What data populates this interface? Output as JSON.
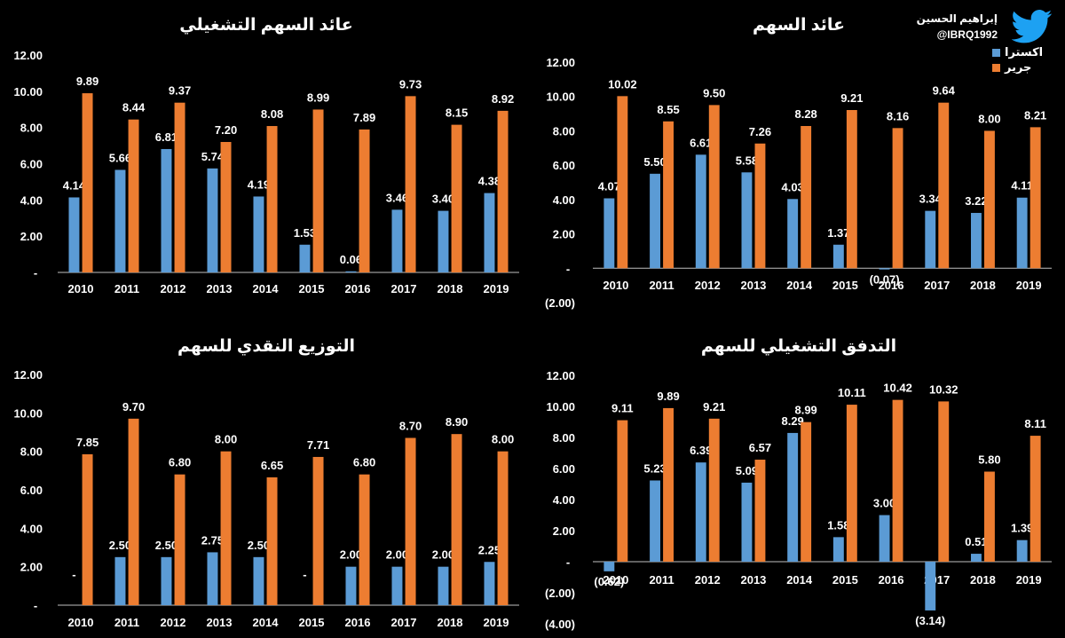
{
  "colors": {
    "background": "#000000",
    "extra": "#5B9BD5",
    "jarir": "#ED7D31",
    "text": "#FFFFFF",
    "axis": "#BFBFBF"
  },
  "brand": {
    "name": "إبراهيم الحسين",
    "handle": "@IBRQ1992",
    "icon": "twitter-bird-icon"
  },
  "legend": {
    "extra": "اكسترا",
    "jarir": "جرير"
  },
  "chart_data": [
    {
      "id": "operating-eps",
      "type": "bar",
      "title": "عائد السهم التشغيلي",
      "categories": [
        "2010",
        "2011",
        "2012",
        "2013",
        "2014",
        "2015",
        "2016",
        "2017",
        "2018",
        "2019"
      ],
      "series": [
        {
          "name": "اكسترا",
          "values": [
            4.14,
            5.66,
            6.81,
            5.74,
            4.19,
            1.53,
            0.06,
            3.46,
            3.4,
            4.38
          ],
          "labels": [
            "4.14",
            "5.66",
            "6.81",
            "5.74",
            "4.19",
            "1.53",
            "0.06",
            "3.46",
            "3.40",
            "4.38"
          ]
        },
        {
          "name": "جرير",
          "values": [
            9.89,
            8.44,
            9.37,
            7.2,
            8.08,
            8.99,
            7.89,
            9.73,
            8.15,
            8.92
          ],
          "labels": [
            "9.89",
            "8.44",
            "9.37",
            "7.20",
            "8.08",
            "8.99",
            "7.89",
            "9.73",
            "8.15",
            "8.92"
          ]
        }
      ],
      "yticks": [
        "-",
        "2.00",
        "4.00",
        "6.00",
        "8.00",
        "10.00",
        "12.00"
      ],
      "ytick_values": [
        0,
        2,
        4,
        6,
        8,
        10,
        12
      ],
      "ylim": [
        0,
        12
      ]
    },
    {
      "id": "eps",
      "type": "bar",
      "title": "عائد السهم",
      "categories": [
        "2010",
        "2011",
        "2012",
        "2013",
        "2014",
        "2015",
        "2016",
        "2017",
        "2018",
        "2019"
      ],
      "series": [
        {
          "name": "اكسترا",
          "values": [
            4.07,
            5.5,
            6.61,
            5.58,
            4.03,
            1.37,
            -0.07,
            3.34,
            3.22,
            4.11
          ],
          "labels": [
            "4.07",
            "5.50",
            "6.61",
            "5.58",
            "4.03",
            "1.37",
            "(0.07)",
            "3.34",
            "3.22",
            "4.11"
          ]
        },
        {
          "name": "جرير",
          "values": [
            10.02,
            8.55,
            9.5,
            7.26,
            8.28,
            9.21,
            8.16,
            9.64,
            8.0,
            8.21
          ],
          "labels": [
            "10.02",
            "8.55",
            "9.50",
            "7.26",
            "8.28",
            "9.21",
            "8.16",
            "9.64",
            "8.00",
            "8.21"
          ]
        }
      ],
      "yticks": [
        "(2.00)",
        "-",
        "2.00",
        "4.00",
        "6.00",
        "8.00",
        "10.00",
        "12.00"
      ],
      "ytick_values": [
        -2,
        0,
        2,
        4,
        6,
        8,
        10,
        12
      ],
      "ylim": [
        -2,
        12
      ],
      "legend": [
        "اكسترا",
        "جرير"
      ]
    },
    {
      "id": "dividends",
      "type": "bar",
      "title": "التوزيع النقدي للسهم",
      "categories": [
        "2010",
        "2011",
        "2012",
        "2013",
        "2014",
        "2015",
        "2016",
        "2017",
        "2018",
        "2019"
      ],
      "series": [
        {
          "name": "اكسترا",
          "values": [
            0,
            2.5,
            2.5,
            2.75,
            2.5,
            0,
            2.0,
            2.0,
            2.0,
            2.25
          ],
          "labels": [
            "-",
            "2.50",
            "2.50",
            "2.75",
            "2.50",
            "-",
            "2.00",
            "2.00",
            "2.00",
            "2.25"
          ]
        },
        {
          "name": "جرير",
          "values": [
            7.85,
            9.7,
            6.8,
            8.0,
            6.65,
            7.71,
            6.8,
            8.7,
            8.9,
            8.0
          ],
          "labels": [
            "7.85",
            "9.70",
            "6.80",
            "8.00",
            "6.65",
            "7.71",
            "6.80",
            "8.70",
            "8.90",
            "8.00"
          ]
        }
      ],
      "yticks": [
        "-",
        "2.00",
        "4.00",
        "6.00",
        "8.00",
        "10.00",
        "12.00"
      ],
      "ytick_values": [
        0,
        2,
        4,
        6,
        8,
        10,
        12
      ],
      "ylim": [
        0,
        12
      ]
    },
    {
      "id": "operating-cashflow",
      "type": "bar",
      "title": "التدفق التشغيلي للسهم",
      "categories": [
        "2010",
        "2011",
        "2012",
        "2013",
        "2014",
        "2015",
        "2016",
        "2017",
        "2018",
        "2019"
      ],
      "series": [
        {
          "name": "اكسترا",
          "values": [
            -0.62,
            5.23,
            6.39,
            5.09,
            8.29,
            1.58,
            3.0,
            -3.14,
            0.51,
            1.39
          ],
          "labels": [
            "(0.62)",
            "5.23",
            "6.39",
            "5.09",
            "8.29",
            "1.58",
            "3.00",
            "(3.14)",
            "0.51",
            "1.39"
          ]
        },
        {
          "name": "جرير",
          "values": [
            9.11,
            9.89,
            9.21,
            6.57,
            8.99,
            10.11,
            10.42,
            10.32,
            5.8,
            8.11
          ],
          "labels": [
            "9.11",
            "9.89",
            "9.21",
            "6.57",
            "8.99",
            "10.11",
            "10.42",
            "10.32",
            "5.80",
            "8.11"
          ]
        }
      ],
      "yticks": [
        "(4.00)",
        "(2.00)",
        "-",
        "2.00",
        "4.00",
        "6.00",
        "8.00",
        "10.00",
        "12.00"
      ],
      "ytick_values": [
        -4,
        -2,
        0,
        2,
        4,
        6,
        8,
        10,
        12
      ],
      "ylim": [
        -4,
        12
      ]
    }
  ]
}
